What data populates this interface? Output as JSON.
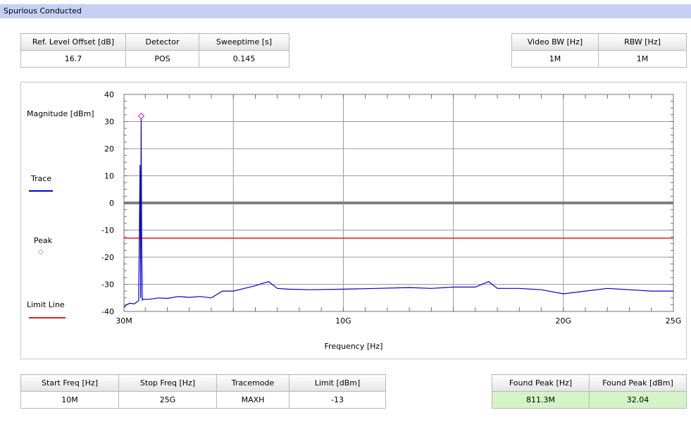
{
  "window": {
    "title": "Spurious Conducted"
  },
  "top_left_params": [
    {
      "label": "Ref. Level Offset [dB]",
      "value": "16.7"
    },
    {
      "label": "Detector",
      "value": "POS"
    },
    {
      "label": "Sweeptime [s]",
      "value": "0.145"
    }
  ],
  "top_right_params": [
    {
      "label": "Video BW [Hz]",
      "value": "1M"
    },
    {
      "label": "RBW [Hz]",
      "value": "1M"
    }
  ],
  "bottom_left_params": [
    {
      "label": "Start Freq [Hz]",
      "value": "10M"
    },
    {
      "label": "Stop Freq [Hz]",
      "value": "25G"
    },
    {
      "label": "Tracemode",
      "value": "MAXH"
    },
    {
      "label": "Limit [dBm]",
      "value": "-13"
    }
  ],
  "bottom_right_params": [
    {
      "label": "Found Peak [Hz]",
      "value": "811.3M"
    },
    {
      "label": "Found Peak [dBm]",
      "value": "32.04"
    }
  ],
  "chart_data": {
    "type": "line",
    "xlabel": "Frequency [Hz]",
    "ylabel": "Magnitude [dBm]",
    "ylim": [
      -40,
      40
    ],
    "xlim": [
      30000000,
      25000000000
    ],
    "y_ticks": [
      "40",
      "30",
      "20",
      "10",
      "0",
      "-10",
      "-20",
      "-30",
      "-40"
    ],
    "x_tick_labels": [
      {
        "x": 30000000,
        "label": "30M"
      },
      {
        "x": 10000000000,
        "label": "10G"
      },
      {
        "x": 20000000000,
        "label": "20G"
      },
      {
        "x": 25000000000,
        "label": "25G"
      }
    ],
    "grid": true,
    "legend": [
      {
        "name": "Trace",
        "color": "#0000cc"
      },
      {
        "name": "Peak",
        "color": "#e040e0"
      },
      {
        "name": "Limit Line",
        "color": "#e02020"
      }
    ],
    "series": [
      {
        "name": "Trace",
        "color": "#0000cc",
        "x": [
          30000000,
          150000000,
          300000000,
          500000000,
          700000000,
          760000000,
          790000000,
          811300000,
          830000000,
          860000000,
          900000000,
          1200000000,
          1600000000,
          2000000000,
          2500000000,
          3000000000,
          3500000000,
          4000000000,
          4500000000,
          5000000000,
          5500000000,
          6000000000,
          6600000000,
          7000000000,
          7500000000,
          8500000000,
          10000000000,
          11500000000,
          13000000000,
          14000000000,
          15000000000,
          16000000000,
          16600000000,
          17000000000,
          18000000000,
          19000000000,
          20000000000,
          21000000000,
          22000000000,
          23000000000,
          24000000000,
          25000000000
        ],
        "values": [
          -38.5,
          -37.5,
          -37,
          -37.2,
          -36,
          14,
          -35,
          31.5,
          -10,
          -35.8,
          -35.5,
          -35.5,
          -35,
          -35.2,
          -34.5,
          -34.8,
          -34.5,
          -35,
          -32.5,
          -32.5,
          -31.5,
          -30.5,
          -29,
          -31.5,
          -31.8,
          -32,
          -31.8,
          -31.5,
          -31.2,
          -31.5,
          -31,
          -31,
          -29,
          -31.5,
          -31.5,
          -32,
          -33.5,
          -32.5,
          -31.5,
          -32,
          -32.5,
          -32.5
        ]
      }
    ],
    "peak": {
      "x": 811300000,
      "y": 32.04
    },
    "limit_line": {
      "y": -13
    }
  }
}
